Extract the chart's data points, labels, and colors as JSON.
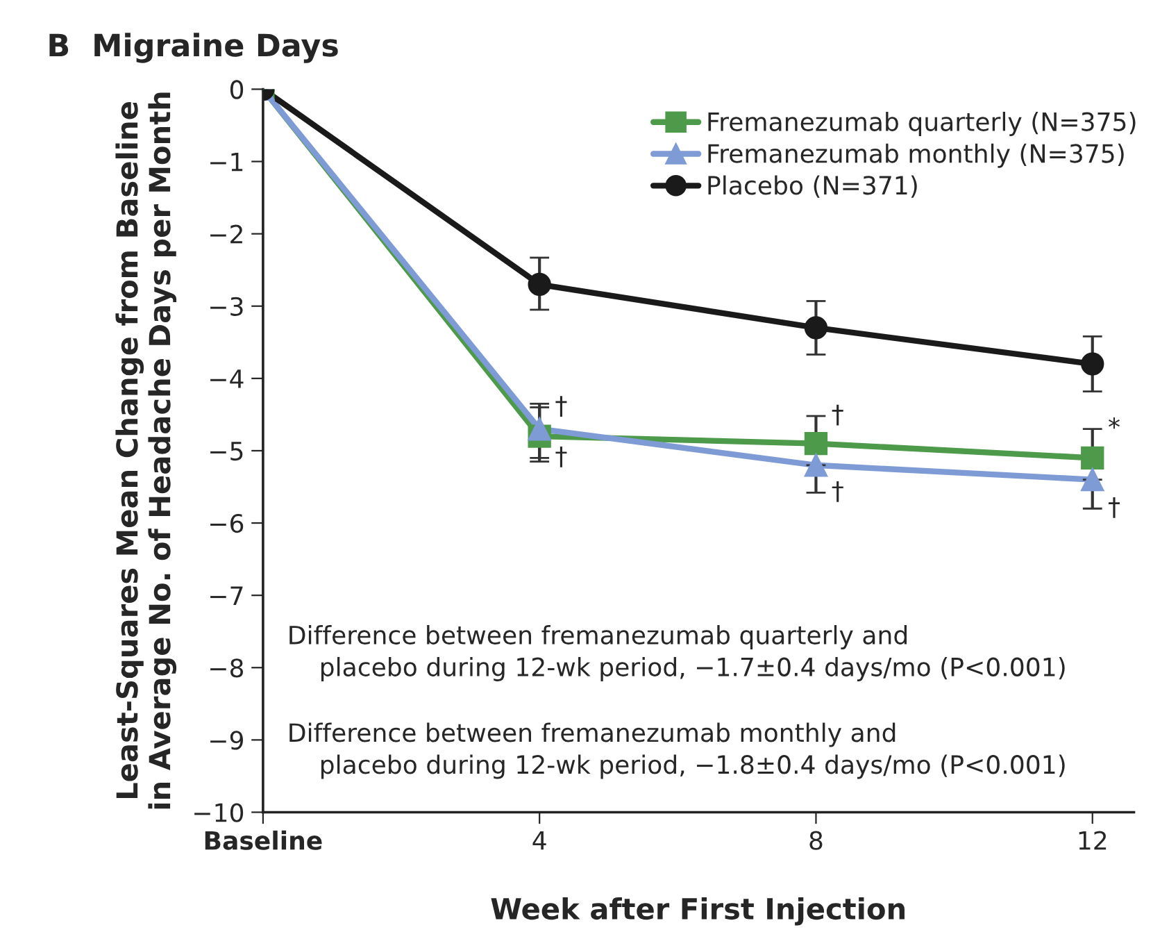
{
  "chart_data": {
    "type": "line",
    "title": "B  Migraine Days",
    "xlabel": "Week after First Injection",
    "ylabel": "Least-Squares Mean Change from Baseline\nin Average No. of Headache Days per Month",
    "x": [
      0,
      4,
      8,
      12
    ],
    "series": [
      {
        "name": "Fremanezumab quarterly (N=375)",
        "color": "#4e9a4b",
        "marker": "square",
        "values": [
          0,
          -4.8,
          -4.9,
          -5.1
        ],
        "errors": [
          null,
          [
            -5.15,
            -4.4
          ],
          [
            -4.9,
            -4.52
          ],
          [
            -5.1,
            -4.7
          ]
        ]
      },
      {
        "name": "Fremanezumab monthly (N=375)",
        "color": "#7f9bd6",
        "marker": "triangle",
        "values": [
          0,
          -4.7,
          -5.2,
          -5.4
        ],
        "errors": [
          null,
          [
            -5.1,
            -4.35
          ],
          [
            -5.58,
            -5.2
          ],
          [
            -5.8,
            -5.4
          ]
        ]
      },
      {
        "name": "Placebo (N=371)",
        "color": "#1a1a1a",
        "marker": "circle",
        "values": [
          0,
          -2.7,
          -3.3,
          -3.8
        ],
        "errors": [
          null,
          [
            -3.05,
            -2.33
          ],
          [
            -3.67,
            -2.93
          ],
          [
            -4.18,
            -3.42
          ]
        ]
      }
    ],
    "xlim": [
      0,
      12.6
    ],
    "ylim": [
      -10,
      0
    ],
    "xticks": [
      {
        "value": 0,
        "label": "Baseline"
      },
      4,
      8,
      12
    ],
    "yticks": [
      0,
      {
        "value": -1,
        "label": "−1"
      },
      {
        "value": -2,
        "label": "−2"
      },
      {
        "value": -3,
        "label": "−3"
      },
      {
        "value": -4,
        "label": "−4"
      },
      {
        "value": -5,
        "label": "−5"
      },
      {
        "value": -6,
        "label": "−6"
      },
      {
        "value": -7,
        "label": "−7"
      },
      {
        "value": -8,
        "label": "−8"
      },
      {
        "value": -9,
        "label": "−9"
      },
      {
        "value": -10,
        "label": "−10"
      }
    ],
    "grid": false,
    "legend": "top right",
    "line_style": "solid",
    "annotations": [
      {
        "text": "†",
        "x": 4,
        "y": -4.4
      },
      {
        "text": "†",
        "x": 4,
        "y": -5.1
      },
      {
        "text": "†",
        "x": 8,
        "y": -4.52
      },
      {
        "text": "†",
        "x": 8,
        "y": -5.58
      },
      {
        "text": "*",
        "x": 12,
        "y": -4.7
      },
      {
        "text": "†",
        "x": 12,
        "y": -5.8
      },
      "Difference between fremanezumab quarterly and\n    placebo during 12-wk period, −1.7±0.4 days/mo (P<0.001)",
      "Difference between fremanezumab monthly and\n    placebo during 12-wk period, −1.8±0.4 days/mo (P<0.001)"
    ]
  }
}
